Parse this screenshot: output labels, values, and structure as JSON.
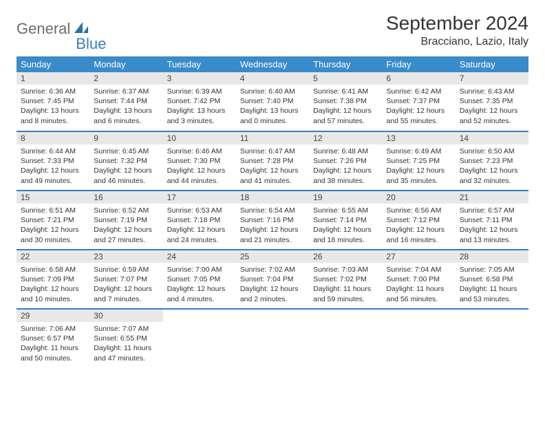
{
  "logo": {
    "part1": "General",
    "part2": "Blue"
  },
  "title": "September 2024",
  "location": "Bracciano, Lazio, Italy",
  "colors": {
    "header_bg": "#3a8bc9",
    "header_text": "#ffffff",
    "daynum_bg": "#e8e8e8",
    "row_border": "#3a7bbf",
    "logo_gray": "#6b6b6b",
    "logo_blue": "#3a7bbf"
  },
  "day_headers": [
    "Sunday",
    "Monday",
    "Tuesday",
    "Wednesday",
    "Thursday",
    "Friday",
    "Saturday"
  ],
  "weeks": [
    [
      {
        "n": "1",
        "sr": "6:36 AM",
        "ss": "7:45 PM",
        "dl": "13 hours and 8 minutes."
      },
      {
        "n": "2",
        "sr": "6:37 AM",
        "ss": "7:44 PM",
        "dl": "13 hours and 6 minutes."
      },
      {
        "n": "3",
        "sr": "6:39 AM",
        "ss": "7:42 PM",
        "dl": "13 hours and 3 minutes."
      },
      {
        "n": "4",
        "sr": "6:40 AM",
        "ss": "7:40 PM",
        "dl": "13 hours and 0 minutes."
      },
      {
        "n": "5",
        "sr": "6:41 AM",
        "ss": "7:38 PM",
        "dl": "12 hours and 57 minutes."
      },
      {
        "n": "6",
        "sr": "6:42 AM",
        "ss": "7:37 PM",
        "dl": "12 hours and 55 minutes."
      },
      {
        "n": "7",
        "sr": "6:43 AM",
        "ss": "7:35 PM",
        "dl": "12 hours and 52 minutes."
      }
    ],
    [
      {
        "n": "8",
        "sr": "6:44 AM",
        "ss": "7:33 PM",
        "dl": "12 hours and 49 minutes."
      },
      {
        "n": "9",
        "sr": "6:45 AM",
        "ss": "7:32 PM",
        "dl": "12 hours and 46 minutes."
      },
      {
        "n": "10",
        "sr": "6:46 AM",
        "ss": "7:30 PM",
        "dl": "12 hours and 44 minutes."
      },
      {
        "n": "11",
        "sr": "6:47 AM",
        "ss": "7:28 PM",
        "dl": "12 hours and 41 minutes."
      },
      {
        "n": "12",
        "sr": "6:48 AM",
        "ss": "7:26 PM",
        "dl": "12 hours and 38 minutes."
      },
      {
        "n": "13",
        "sr": "6:49 AM",
        "ss": "7:25 PM",
        "dl": "12 hours and 35 minutes."
      },
      {
        "n": "14",
        "sr": "6:50 AM",
        "ss": "7:23 PM",
        "dl": "12 hours and 32 minutes."
      }
    ],
    [
      {
        "n": "15",
        "sr": "6:51 AM",
        "ss": "7:21 PM",
        "dl": "12 hours and 30 minutes."
      },
      {
        "n": "16",
        "sr": "6:52 AM",
        "ss": "7:19 PM",
        "dl": "12 hours and 27 minutes."
      },
      {
        "n": "17",
        "sr": "6:53 AM",
        "ss": "7:18 PM",
        "dl": "12 hours and 24 minutes."
      },
      {
        "n": "18",
        "sr": "6:54 AM",
        "ss": "7:16 PM",
        "dl": "12 hours and 21 minutes."
      },
      {
        "n": "19",
        "sr": "6:55 AM",
        "ss": "7:14 PM",
        "dl": "12 hours and 18 minutes."
      },
      {
        "n": "20",
        "sr": "6:56 AM",
        "ss": "7:12 PM",
        "dl": "12 hours and 16 minutes."
      },
      {
        "n": "21",
        "sr": "6:57 AM",
        "ss": "7:11 PM",
        "dl": "12 hours and 13 minutes."
      }
    ],
    [
      {
        "n": "22",
        "sr": "6:58 AM",
        "ss": "7:09 PM",
        "dl": "12 hours and 10 minutes."
      },
      {
        "n": "23",
        "sr": "6:59 AM",
        "ss": "7:07 PM",
        "dl": "12 hours and 7 minutes."
      },
      {
        "n": "24",
        "sr": "7:00 AM",
        "ss": "7:05 PM",
        "dl": "12 hours and 4 minutes."
      },
      {
        "n": "25",
        "sr": "7:02 AM",
        "ss": "7:04 PM",
        "dl": "12 hours and 2 minutes."
      },
      {
        "n": "26",
        "sr": "7:03 AM",
        "ss": "7:02 PM",
        "dl": "11 hours and 59 minutes."
      },
      {
        "n": "27",
        "sr": "7:04 AM",
        "ss": "7:00 PM",
        "dl": "11 hours and 56 minutes."
      },
      {
        "n": "28",
        "sr": "7:05 AM",
        "ss": "6:58 PM",
        "dl": "11 hours and 53 minutes."
      }
    ],
    [
      {
        "n": "29",
        "sr": "7:06 AM",
        "ss": "6:57 PM",
        "dl": "11 hours and 50 minutes."
      },
      {
        "n": "30",
        "sr": "7:07 AM",
        "ss": "6:55 PM",
        "dl": "11 hours and 47 minutes."
      },
      null,
      null,
      null,
      null,
      null
    ]
  ],
  "labels": {
    "sunrise": "Sunrise:",
    "sunset": "Sunset:",
    "daylight": "Daylight:"
  }
}
